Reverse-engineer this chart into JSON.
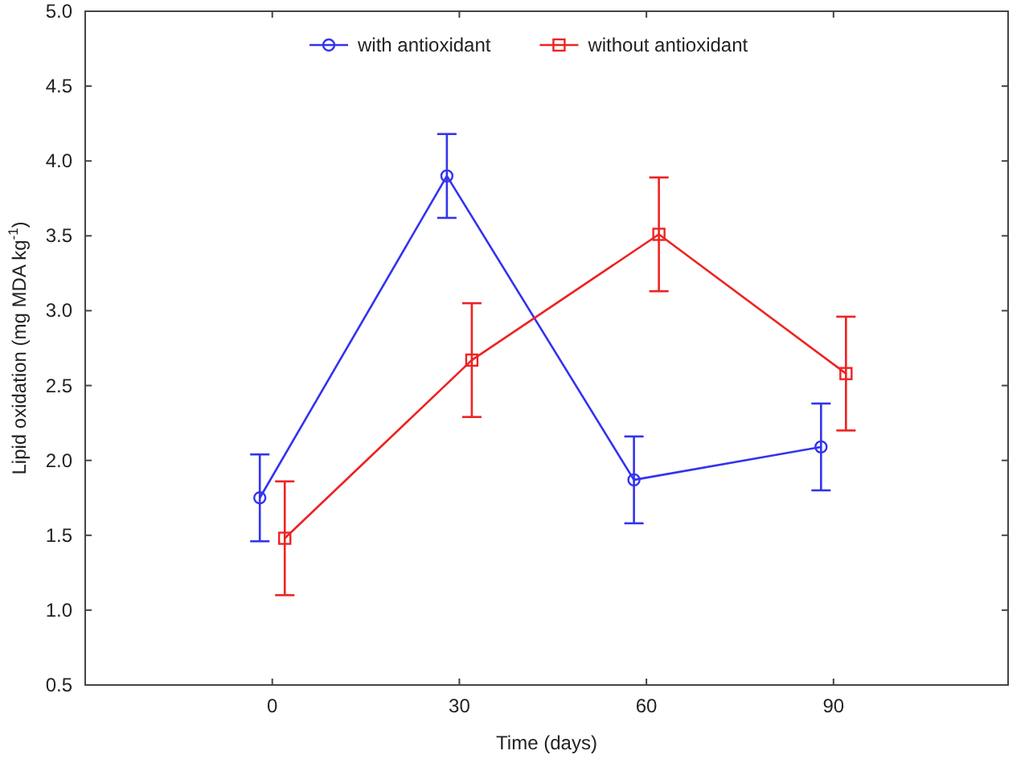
{
  "chart_data": {
    "type": "line",
    "xlabel": "Time (days)",
    "ylabel": "Lipid oxidation (mg MDA kg$^{-1}$)",
    "xlim": [
      -30,
      118
    ],
    "ylim": [
      0.5,
      5.0
    ],
    "xticks": [
      0,
      30,
      60,
      90
    ],
    "yticks": [
      {
        "value": 0.5,
        "label": "0.5"
      },
      {
        "value": 1.0,
        "label": "1.0"
      },
      {
        "value": 1.5,
        "label": "1.5"
      },
      {
        "value": 2.0,
        "label": "2.0"
      },
      {
        "value": 2.5,
        "label": "2.5"
      },
      {
        "value": 3.0,
        "label": "3.0"
      },
      {
        "value": 3.5,
        "label": "3.5"
      },
      {
        "value": 4.0,
        "label": "4.0"
      },
      {
        "value": 4.5,
        "label": "4.5"
      },
      {
        "value": 5.0,
        "label": "5.0"
      }
    ],
    "grid": false,
    "legend": "top",
    "line_style": "solid",
    "series": [
      {
        "name": "with antioxidant",
        "color": "#3333ee",
        "marker": "circle",
        "x": [
          -2,
          28,
          58,
          88
        ],
        "values": [
          1.75,
          3.9,
          1.87,
          2.09
        ],
        "errors": [
          0.29,
          0.28,
          0.29,
          0.29
        ]
      },
      {
        "name": "without antioxidant",
        "color": "#ee2222",
        "marker": "square",
        "x": [
          2,
          32,
          62,
          92
        ],
        "values": [
          1.48,
          2.67,
          3.51,
          2.58
        ],
        "errors": [
          0.38,
          0.38,
          0.38,
          0.38
        ]
      }
    ]
  }
}
